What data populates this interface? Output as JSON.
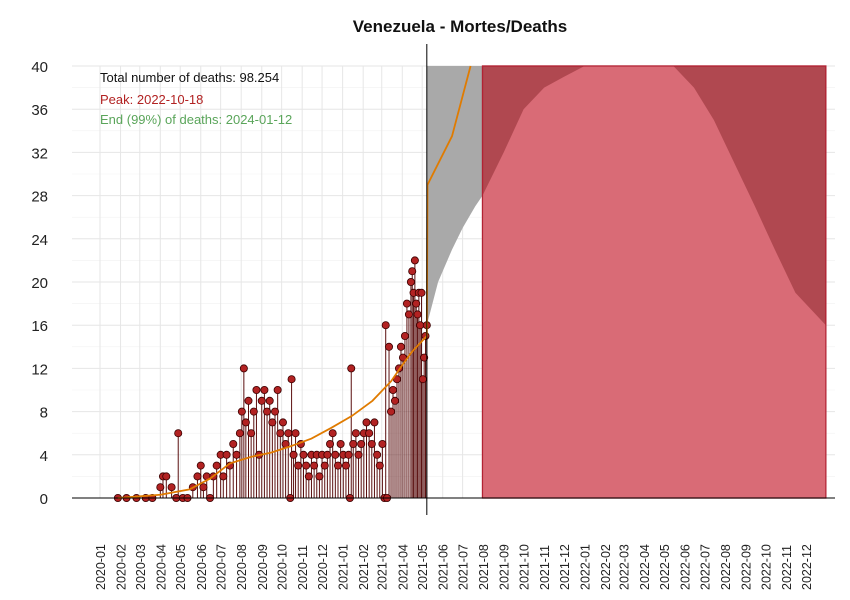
{
  "chart_data": {
    "type": "line",
    "title": "Venezuela - Mortes/Deaths",
    "xlabel": "",
    "ylabel": "",
    "ylim": [
      0,
      40
    ],
    "y_ticks": [
      0,
      4,
      8,
      12,
      16,
      20,
      24,
      28,
      32,
      36,
      40
    ],
    "x_tick_labels": [
      "2020-01",
      "2020-02",
      "2020-03",
      "2020-04",
      "2020-05",
      "2020-06",
      "2020-07",
      "2020-08",
      "2020-09",
      "2020-10",
      "2020-11",
      "2020-12",
      "2021-01",
      "2021-02",
      "2021-03",
      "2021-04",
      "2021-05",
      "2021-06",
      "2021-07",
      "2021-08",
      "2021-09",
      "2021-10",
      "2021-11",
      "2021-12",
      "2022-01",
      "2022-02",
      "2022-03",
      "2022-04",
      "2022-05",
      "2022-06",
      "2022-07",
      "2022-08",
      "2022-09",
      "2022-10",
      "2022-11",
      "2022-12"
    ],
    "grid": true,
    "annotations": {
      "total": "Total number of deaths: 98.254",
      "peak": "Peak: 2022-10-18",
      "end": "End (99%) of deaths: 2024-01-12"
    },
    "vertical_line_date": "2021-05-08",
    "colors": {
      "observed": "#b22222",
      "observed_stem": "#5a0f0f",
      "trend": "#e07b00",
      "band_gray": "#a9a9a9",
      "band_red_light": "#d96b76",
      "band_red_dark": "#b04850",
      "peak_text": "#b22222",
      "end_text": "#5aa55a"
    },
    "observed_daily_deaths": [
      {
        "x": "2020-01-28",
        "y": 0
      },
      {
        "x": "2020-02-10",
        "y": 0
      },
      {
        "x": "2020-02-25",
        "y": 0
      },
      {
        "x": "2020-03-10",
        "y": 0
      },
      {
        "x": "2020-03-20",
        "y": 0
      },
      {
        "x": "2020-04-01",
        "y": 1
      },
      {
        "x": "2020-04-05",
        "y": 2
      },
      {
        "x": "2020-04-10",
        "y": 2
      },
      {
        "x": "2020-04-18",
        "y": 1
      },
      {
        "x": "2020-04-25",
        "y": 0
      },
      {
        "x": "2020-04-28",
        "y": 6
      },
      {
        "x": "2020-05-05",
        "y": 0
      },
      {
        "x": "2020-05-12",
        "y": 0
      },
      {
        "x": "2020-05-20",
        "y": 1
      },
      {
        "x": "2020-05-27",
        "y": 2
      },
      {
        "x": "2020-06-01",
        "y": 3
      },
      {
        "x": "2020-06-05",
        "y": 1
      },
      {
        "x": "2020-06-10",
        "y": 2
      },
      {
        "x": "2020-06-15",
        "y": 0
      },
      {
        "x": "2020-06-20",
        "y": 2
      },
      {
        "x": "2020-06-25",
        "y": 3
      },
      {
        "x": "2020-07-01",
        "y": 4
      },
      {
        "x": "2020-07-05",
        "y": 2
      },
      {
        "x": "2020-07-10",
        "y": 4
      },
      {
        "x": "2020-07-15",
        "y": 3
      },
      {
        "x": "2020-07-20",
        "y": 5
      },
      {
        "x": "2020-07-25",
        "y": 4
      },
      {
        "x": "2020-07-30",
        "y": 6
      },
      {
        "x": "2020-08-02",
        "y": 8
      },
      {
        "x": "2020-08-05",
        "y": 12
      },
      {
        "x": "2020-08-08",
        "y": 7
      },
      {
        "x": "2020-08-12",
        "y": 9
      },
      {
        "x": "2020-08-16",
        "y": 6
      },
      {
        "x": "2020-08-20",
        "y": 8
      },
      {
        "x": "2020-08-24",
        "y": 10
      },
      {
        "x": "2020-08-28",
        "y": 4
      },
      {
        "x": "2020-09-01",
        "y": 9
      },
      {
        "x": "2020-09-05",
        "y": 10
      },
      {
        "x": "2020-09-09",
        "y": 8
      },
      {
        "x": "2020-09-13",
        "y": 9
      },
      {
        "x": "2020-09-17",
        "y": 7
      },
      {
        "x": "2020-09-21",
        "y": 8
      },
      {
        "x": "2020-09-25",
        "y": 10
      },
      {
        "x": "2020-09-29",
        "y": 6
      },
      {
        "x": "2020-10-03",
        "y": 7
      },
      {
        "x": "2020-10-07",
        "y": 5
      },
      {
        "x": "2020-10-11",
        "y": 6
      },
      {
        "x": "2020-10-14",
        "y": 0
      },
      {
        "x": "2020-10-16",
        "y": 11
      },
      {
        "x": "2020-10-19",
        "y": 4
      },
      {
        "x": "2020-10-22",
        "y": 6
      },
      {
        "x": "2020-10-26",
        "y": 3
      },
      {
        "x": "2020-10-30",
        "y": 5
      },
      {
        "x": "2020-11-03",
        "y": 4
      },
      {
        "x": "2020-11-07",
        "y": 3
      },
      {
        "x": "2020-11-11",
        "y": 2
      },
      {
        "x": "2020-11-15",
        "y": 4
      },
      {
        "x": "2020-11-19",
        "y": 3
      },
      {
        "x": "2020-11-23",
        "y": 4
      },
      {
        "x": "2020-11-27",
        "y": 2
      },
      {
        "x": "2020-12-01",
        "y": 4
      },
      {
        "x": "2020-12-05",
        "y": 3
      },
      {
        "x": "2020-12-09",
        "y": 4
      },
      {
        "x": "2020-12-13",
        "y": 5
      },
      {
        "x": "2020-12-17",
        "y": 6
      },
      {
        "x": "2020-12-21",
        "y": 4
      },
      {
        "x": "2020-12-25",
        "y": 3
      },
      {
        "x": "2020-12-29",
        "y": 5
      },
      {
        "x": "2021-01-02",
        "y": 4
      },
      {
        "x": "2021-01-06",
        "y": 3
      },
      {
        "x": "2021-01-10",
        "y": 4
      },
      {
        "x": "2021-01-12",
        "y": 0
      },
      {
        "x": "2021-01-14",
        "y": 12
      },
      {
        "x": "2021-01-17",
        "y": 5
      },
      {
        "x": "2021-01-21",
        "y": 6
      },
      {
        "x": "2021-01-25",
        "y": 4
      },
      {
        "x": "2021-01-29",
        "y": 5
      },
      {
        "x": "2021-02-02",
        "y": 6
      },
      {
        "x": "2021-02-06",
        "y": 7
      },
      {
        "x": "2021-02-10",
        "y": 6
      },
      {
        "x": "2021-02-14",
        "y": 5
      },
      {
        "x": "2021-02-18",
        "y": 7
      },
      {
        "x": "2021-02-22",
        "y": 4
      },
      {
        "x": "2021-02-26",
        "y": 3
      },
      {
        "x": "2021-03-02",
        "y": 5
      },
      {
        "x": "2021-03-05",
        "y": 0
      },
      {
        "x": "2021-03-07",
        "y": 16
      },
      {
        "x": "2021-03-09",
        "y": 0
      },
      {
        "x": "2021-03-12",
        "y": 14
      },
      {
        "x": "2021-03-15",
        "y": 8
      },
      {
        "x": "2021-03-18",
        "y": 10
      },
      {
        "x": "2021-03-21",
        "y": 9
      },
      {
        "x": "2021-03-24",
        "y": 11
      },
      {
        "x": "2021-03-27",
        "y": 12
      },
      {
        "x": "2021-03-30",
        "y": 14
      },
      {
        "x": "2021-04-02",
        "y": 13
      },
      {
        "x": "2021-04-05",
        "y": 15
      },
      {
        "x": "2021-04-08",
        "y": 18
      },
      {
        "x": "2021-04-11",
        "y": 17
      },
      {
        "x": "2021-04-14",
        "y": 20
      },
      {
        "x": "2021-04-16",
        "y": 21
      },
      {
        "x": "2021-04-18",
        "y": 19
      },
      {
        "x": "2021-04-20",
        "y": 22
      },
      {
        "x": "2021-04-22",
        "y": 18
      },
      {
        "x": "2021-04-24",
        "y": 17
      },
      {
        "x": "2021-04-26",
        "y": 19
      },
      {
        "x": "2021-04-28",
        "y": 16
      },
      {
        "x": "2021-04-30",
        "y": 19
      },
      {
        "x": "2021-05-02",
        "y": 11
      },
      {
        "x": "2021-05-04",
        "y": 13
      },
      {
        "x": "2021-05-06",
        "y": 15
      },
      {
        "x": "2021-05-08",
        "y": 16
      }
    ],
    "trend_line": [
      {
        "x": "2020-01-28",
        "y": 0
      },
      {
        "x": "2020-04-01",
        "y": 0.3
      },
      {
        "x": "2020-05-15",
        "y": 0.8
      },
      {
        "x": "2020-06-15",
        "y": 1.8
      },
      {
        "x": "2020-07-15",
        "y": 3.2
      },
      {
        "x": "2020-08-15",
        "y": 3.8
      },
      {
        "x": "2020-09-15",
        "y": 4.2
      },
      {
        "x": "2020-10-15",
        "y": 4.8
      },
      {
        "x": "2020-11-15",
        "y": 5.5
      },
      {
        "x": "2020-12-15",
        "y": 6.5
      },
      {
        "x": "2021-01-15",
        "y": 7.6
      },
      {
        "x": "2021-02-15",
        "y": 9.0
      },
      {
        "x": "2021-03-15",
        "y": 10.8
      },
      {
        "x": "2021-04-01",
        "y": 12.3
      },
      {
        "x": "2021-04-15",
        "y": 13.5
      },
      {
        "x": "2021-05-08",
        "y": 15.0
      },
      {
        "x": "2021-05-09",
        "y": 29.0
      },
      {
        "x": "2021-06-15",
        "y": 33.5
      },
      {
        "x": "2021-07-13",
        "y": 40.0
      }
    ],
    "gray_band": [
      {
        "x": "2021-05-08",
        "lo": 16,
        "hi": 40
      },
      {
        "x": "2021-05-25",
        "lo": 20,
        "hi": 40
      },
      {
        "x": "2021-06-15",
        "lo": 23,
        "hi": 40
      },
      {
        "x": "2021-07-01",
        "lo": 25,
        "hi": 40
      },
      {
        "x": "2021-07-20",
        "lo": 27,
        "hi": 40
      },
      {
        "x": "2021-07-31",
        "lo": 28,
        "hi": 40
      }
    ],
    "red_band": {
      "x_start": "2021-07-31",
      "x_end": "2022-12-31",
      "lo": 0,
      "upper_edge": [
        {
          "x": "2021-07-31",
          "y": 28
        },
        {
          "x": "2021-09-01",
          "y": 32
        },
        {
          "x": "2021-10-01",
          "y": 36
        },
        {
          "x": "2021-11-01",
          "y": 38
        },
        {
          "x": "2021-12-01",
          "y": 39
        },
        {
          "x": "2022-01-01",
          "y": 40
        },
        {
          "x": "2022-05-15",
          "y": 40
        },
        {
          "x": "2022-06-15",
          "y": 38
        },
        {
          "x": "2022-07-15",
          "y": 35
        },
        {
          "x": "2022-08-15",
          "y": 31
        },
        {
          "x": "2022-09-15",
          "y": 27
        },
        {
          "x": "2022-10-15",
          "y": 23
        },
        {
          "x": "2022-11-15",
          "y": 19
        },
        {
          "x": "2022-12-31",
          "y": 16
        }
      ]
    }
  }
}
